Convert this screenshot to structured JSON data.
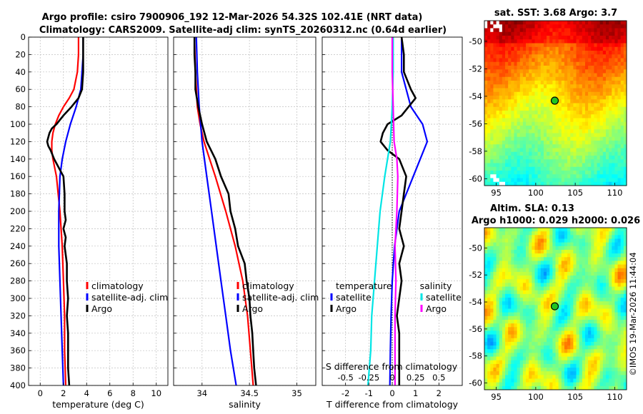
{
  "header": {
    "title_line1": "Argo profile: csiro 7900906_192 12-Mar-2026 54.32S 102.41E (NRT data)",
    "title_line2": "Climatology: CARS2009. Satellite-adj clim: synTS_20260312.nc (0.64d earlier)"
  },
  "colors": {
    "climatology": "#ff0000",
    "satellite": "#0000ff",
    "argo": "#000000",
    "salinity_satellite": "#00e5e5",
    "salinity_argo": "#ff00ff"
  },
  "chart_data": [
    {
      "type": "line",
      "id": "temperature",
      "xlabel": "temperature (deg C)",
      "ylabel": "",
      "xlim": [
        -1,
        11
      ],
      "ylim": [
        400,
        0
      ],
      "xticks": [
        0,
        2,
        4,
        6,
        8,
        10
      ],
      "yticks": [
        0,
        20,
        40,
        60,
        80,
        100,
        120,
        140,
        160,
        180,
        200,
        220,
        240,
        260,
        280,
        300,
        320,
        340,
        360,
        380,
        400
      ],
      "grid": true,
      "legend": {
        "position": "lower-right",
        "entries": [
          "climatology",
          "satellite-adj. clim",
          "Argo"
        ]
      },
      "series": [
        {
          "name": "climatology",
          "color": "#ff0000",
          "depth": [
            0,
            20,
            40,
            60,
            70,
            80,
            90,
            100,
            110,
            120,
            130,
            140,
            160,
            200,
            240,
            280,
            320,
            360,
            400
          ],
          "values": [
            3.3,
            3.3,
            3.2,
            2.9,
            2.5,
            2.0,
            1.6,
            1.3,
            1.1,
            1.0,
            1.0,
            1.1,
            1.4,
            1.7,
            1.9,
            2.0,
            2.1,
            2.1,
            2.2
          ]
        },
        {
          "name": "satellite-adj. clim",
          "color": "#0000ff",
          "depth": [
            0,
            20,
            40,
            60,
            80,
            100,
            120,
            140,
            160,
            200,
            240,
            280,
            320,
            360,
            400
          ],
          "values": [
            3.7,
            3.7,
            3.6,
            3.5,
            3.1,
            2.6,
            2.2,
            1.9,
            1.7,
            1.6,
            1.6,
            1.7,
            1.8,
            1.9,
            2.0
          ]
        },
        {
          "name": "Argo",
          "color": "#000000",
          "depth": [
            0,
            20,
            40,
            60,
            70,
            80,
            90,
            100,
            105,
            110,
            115,
            120,
            125,
            130,
            140,
            150,
            160,
            180,
            200,
            210,
            220,
            230,
            240,
            260,
            280,
            300,
            320,
            340,
            360,
            380,
            400
          ],
          "values": [
            3.7,
            3.7,
            3.7,
            3.6,
            3.3,
            2.7,
            2.0,
            1.4,
            1.0,
            0.8,
            0.7,
            0.6,
            0.7,
            0.9,
            1.2,
            1.6,
            2.0,
            2.1,
            2.1,
            2.2,
            2.0,
            2.2,
            2.1,
            2.3,
            2.3,
            2.4,
            2.3,
            2.4,
            2.4,
            2.4,
            2.5
          ]
        }
      ]
    },
    {
      "type": "line",
      "id": "salinity",
      "xlabel": "salinity",
      "xlim": [
        33.7,
        35.2
      ],
      "ylim": [
        400,
        0
      ],
      "xticks": [
        34,
        34.5,
        35
      ],
      "xticklabels": [
        "34",
        "34.5",
        "35"
      ],
      "grid": true,
      "legend": {
        "position": "lower-right",
        "entries": [
          "climatology",
          "satellite-adj. clim",
          "Argo"
        ]
      },
      "series": [
        {
          "name": "climatology",
          "color": "#ff0000",
          "depth": [
            0,
            40,
            80,
            100,
            120,
            140,
            160,
            200,
            240,
            280,
            320,
            360,
            400
          ],
          "values": [
            33.92,
            33.93,
            33.95,
            33.98,
            34.02,
            34.08,
            34.14,
            34.25,
            34.35,
            34.43,
            34.48,
            34.51,
            34.54
          ]
        },
        {
          "name": "satellite-adj. clim",
          "color": "#0000ff",
          "depth": [
            0,
            40,
            80,
            120,
            160,
            200,
            240,
            280,
            320,
            360,
            400
          ],
          "values": [
            33.94,
            33.95,
            33.97,
            34.0,
            34.05,
            34.1,
            34.15,
            34.2,
            34.25,
            34.3,
            34.36
          ]
        },
        {
          "name": "Argo",
          "color": "#000000",
          "depth": [
            0,
            20,
            40,
            60,
            80,
            100,
            120,
            140,
            160,
            180,
            200,
            220,
            240,
            260,
            280,
            300,
            320,
            340,
            360,
            380,
            400
          ],
          "values": [
            33.92,
            33.92,
            33.93,
            33.93,
            33.96,
            34.0,
            34.05,
            34.14,
            34.2,
            34.28,
            34.3,
            34.35,
            34.38,
            34.45,
            34.47,
            34.5,
            34.51,
            34.53,
            34.54,
            34.55,
            34.57
          ]
        }
      ]
    },
    {
      "type": "line",
      "id": "difference",
      "xlabel": "T difference from climatology",
      "xlabel_top": "S difference from climatology",
      "xlim": [
        -3,
        3
      ],
      "ylim": [
        400,
        0
      ],
      "xticks": [
        -2,
        -1,
        0,
        1,
        2
      ],
      "xticks_salinity": [
        -0.5,
        -0.25,
        0,
        0.25,
        0.5
      ],
      "xticks_salinity_labels": [
        "-0.5",
        "-0.25",
        "0",
        "0.25",
        "0.5"
      ],
      "grid": true,
      "legend_temperature": {
        "title": "temperature",
        "entries": [
          "satellite",
          "Argo"
        ]
      },
      "legend_salinity": {
        "title": "salinity",
        "entries": [
          "satellite",
          "Argo"
        ]
      },
      "series": [
        {
          "name": "temperature satellite",
          "color": "#0000ff",
          "depth": [
            0,
            40,
            80,
            100,
            120,
            140,
            160,
            180,
            200,
            240,
            280,
            320,
            360,
            400
          ],
          "values": [
            0.4,
            0.4,
            0.8,
            1.3,
            1.5,
            1.2,
            0.9,
            0.6,
            0.3,
            0.1,
            0.0,
            -0.05,
            -0.08,
            -0.1
          ]
        },
        {
          "name": "temperature Argo",
          "color": "#000000",
          "depth": [
            0,
            20,
            40,
            60,
            70,
            80,
            90,
            100,
            110,
            120,
            130,
            140,
            160,
            180,
            200,
            220,
            240,
            260,
            280,
            300,
            320,
            340,
            360,
            380,
            400
          ],
          "values": [
            0.4,
            0.5,
            0.5,
            0.8,
            1.0,
            0.7,
            0.4,
            -0.2,
            -0.4,
            -0.5,
            -0.2,
            0.3,
            0.6,
            0.5,
            0.4,
            0.3,
            0.5,
            0.3,
            0.4,
            0.3,
            0.2,
            0.3,
            0.3,
            0.3,
            0.3
          ]
        },
        {
          "name": "salinity satellite",
          "color": "#00e5e5",
          "depth": [
            0,
            40,
            80,
            120,
            160,
            200,
            240,
            280,
            320,
            360,
            400
          ],
          "values": [
            0.01,
            0.01,
            0.0,
            -0.02,
            -0.08,
            -0.13,
            -0.16,
            -0.19,
            -0.22,
            -0.23,
            -0.26
          ]
        },
        {
          "name": "salinity Argo",
          "color": "#ff00ff",
          "depth": [
            0,
            40,
            80,
            120,
            140,
            160,
            200,
            240,
            280,
            320,
            360,
            400
          ],
          "values": [
            0.0,
            0.0,
            0.01,
            0.02,
            0.05,
            0.06,
            0.05,
            0.03,
            0.04,
            0.03,
            0.03,
            0.03
          ]
        }
      ]
    },
    {
      "type": "heatmap",
      "id": "sst-map",
      "title": "sat. SST: 3.68 Argo: 3.7",
      "xlim": [
        93.5,
        111.5
      ],
      "ylim": [
        -60.5,
        -48.5
      ],
      "xticks": [
        95,
        100,
        105,
        110
      ],
      "yticks": [
        -50,
        -52,
        -54,
        -56,
        -58,
        -60
      ],
      "marker": {
        "lon": 102.41,
        "lat": -54.32
      }
    },
    {
      "type": "heatmap",
      "id": "sla-map",
      "title_line1": "Altim. SLA: 0.13",
      "title_line2": "Argo h1000: 0.029 h2000: 0.026",
      "xlim": [
        93.5,
        111.5
      ],
      "ylim": [
        -60.5,
        -48.5
      ],
      "xticks": [
        95,
        100,
        105,
        110
      ],
      "yticks": [
        -50,
        -52,
        -54,
        -56,
        -58,
        -60
      ],
      "marker": {
        "lon": 102.41,
        "lat": -54.32
      }
    }
  ],
  "footer": {
    "credit": "©IMOS 19-Mar-2026 11:44:04"
  }
}
